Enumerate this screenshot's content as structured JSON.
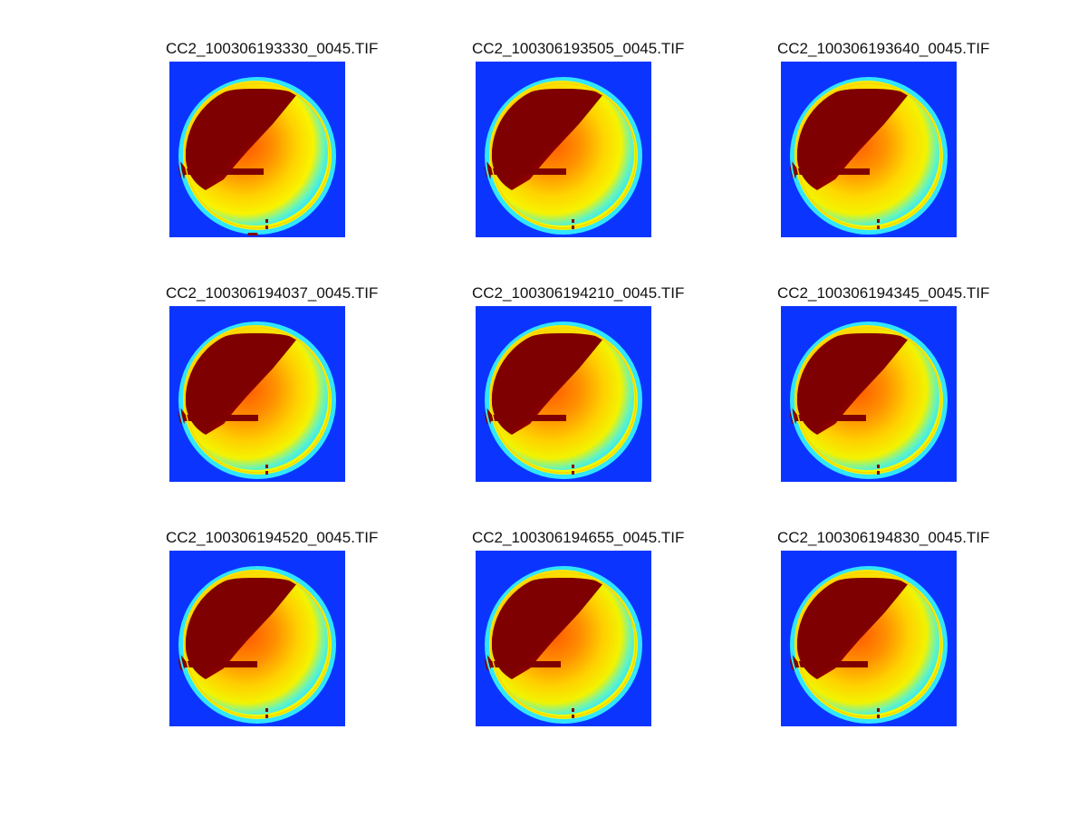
{
  "figure": {
    "panels": [
      {
        "title": "CC2_100306193330_0045.TIF"
      },
      {
        "title": "CC2_100306193505_0045.TIF"
      },
      {
        "title": "CC2_100306193640_0045.TIF"
      },
      {
        "title": "CC2_100306194037_0045.TIF"
      },
      {
        "title": "CC2_100306194210_0045.TIF"
      },
      {
        "title": "CC2_100306194345_0045.TIF"
      },
      {
        "title": "CC2_100306194520_0045.TIF"
      },
      {
        "title": "CC2_100306194655_0045.TIF"
      },
      {
        "title": "CC2_100306194830_0045.TIF"
      }
    ]
  },
  "colors": {
    "background": "#ffffff",
    "image_background": "#0b35ff",
    "dark_red": "#7f0000",
    "red": "#ff1a00",
    "orange": "#ff8a00",
    "yellow": "#fff000",
    "cyan": "#31e6ff"
  }
}
